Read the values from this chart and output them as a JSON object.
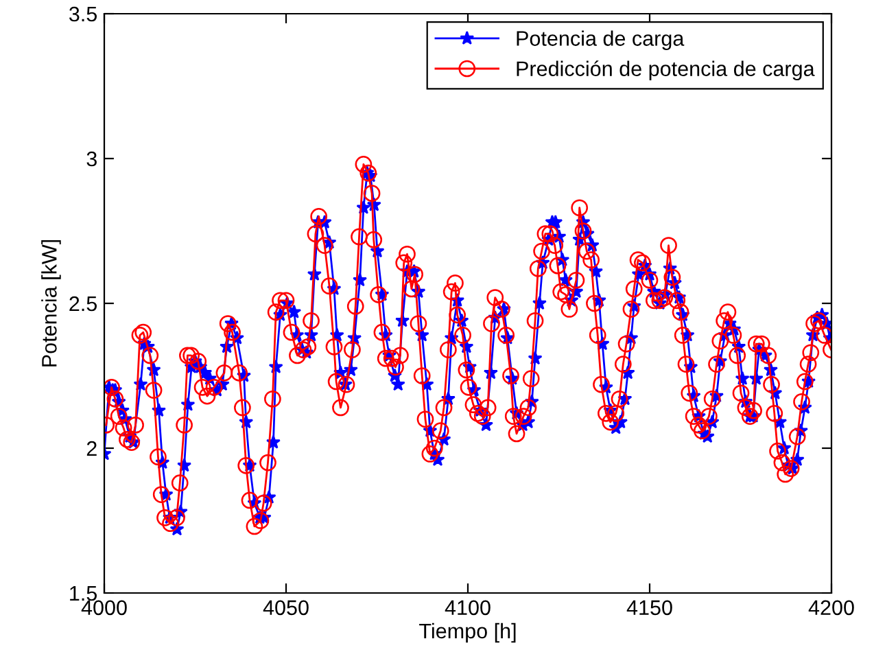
{
  "chart_data": {
    "type": "line",
    "xlabel": "Tiempo [h]",
    "ylabel": "Potencia [kW]",
    "xlim": [
      4000,
      4200
    ],
    "xticks": [
      4000,
      4050,
      4100,
      4150,
      4200
    ],
    "ylim": [
      1.5,
      3.5
    ],
    "yticks": [
      1.5,
      2,
      2.5,
      3,
      3.5
    ],
    "grid": false,
    "legend": "top right",
    "line_style": "solid",
    "series": [
      {
        "name": "Potencia de carga",
        "color": "#0000ff",
        "marker": "star",
        "x": [
          4000,
          4001.3,
          4002.3,
          4003,
          4004,
          4005,
          4005.7,
          4007,
          4008,
          4010,
          4011,
          4012,
          4013.6,
          4015,
          4016,
          4017,
          4018,
          4020,
          4021,
          4022,
          4023,
          4024,
          4025,
          4026.4,
          4027.7,
          4029,
          4031,
          4032.5,
          4033.7,
          4035,
          4036.5,
          4038.4,
          4039,
          4040,
          4041.3,
          4042.8,
          4044,
          4045.3,
          4046.5,
          4047.2,
          4048.4,
          4050.3,
          4052.2,
          4053,
          4054.4,
          4055.6,
          4056.9,
          4057.8,
          4058.8,
          4060.6,
          4061.9,
          4063.2,
          4064,
          4065,
          4066.3,
          4067.8,
          4068.8,
          4070.3,
          4071.3,
          4072.3,
          4073.2,
          4074.2,
          4075.1,
          4076.4,
          4077.4,
          4078.4,
          4079.9,
          4080.8,
          4082,
          4083.3,
          4085.2,
          4086.4,
          4087.4,
          4088.7,
          4089.6,
          4090.8,
          4091.7,
          4093.4,
          4094.6,
          4095.5,
          4097.1,
          4098.3,
          4099.6,
          4100.5,
          4101.7,
          4103.4,
          4105,
          4106.3,
          4107.5,
          4109.9,
          4110.9,
          4112.2,
          4113.4,
          4115.1,
          4116.6,
          4117.6,
          4118.5,
          4119.7,
          4120.6,
          4122.2,
          4123.2,
          4124.1,
          4125.1,
          4126,
          4126.9,
          4128.5,
          4129.8,
          4130.7,
          4131.7,
          4132.9,
          4134.2,
          4135.2,
          4136.1,
          4137,
          4138,
          4139.2,
          4140.7,
          4142,
          4143.2,
          4144,
          4144.9,
          4145.7,
          4147,
          4148.7,
          4150,
          4151.2,
          4152.8,
          4154.3,
          4155.6,
          4156.9,
          4158.1,
          4159.1,
          4160.4,
          4161.3,
          4162.1,
          4163.5,
          4165,
          4165.9,
          4167.2,
          4168.4,
          4169.4,
          4170.7,
          4172,
          4173.2,
          4174.5,
          4175.5,
          4176.4,
          4177.6,
          4178.5,
          4179.3,
          4180.1,
          4181.8,
          4183.3,
          4184.5,
          4185.8,
          4187,
          4188.1,
          4189.3,
          4190.6,
          4191.6,
          4192.7,
          4193.7,
          4194.9,
          4196.1,
          4197.4,
          4198.7,
          4199.6
        ],
        "values": [
          1.98,
          2.21,
          2.2,
          2.2,
          2.16,
          2.13,
          2.1,
          2.04,
          2.02,
          2.22,
          2.36,
          2.35,
          2.27,
          2.13,
          1.95,
          1.84,
          1.76,
          1.72,
          1.78,
          1.94,
          2.15,
          2.28,
          2.3,
          2.28,
          2.26,
          2.24,
          2.2,
          2.22,
          2.35,
          2.43,
          2.38,
          2.25,
          2.09,
          1.94,
          1.81,
          1.76,
          1.76,
          1.83,
          2.02,
          2.28,
          2.46,
          2.5,
          2.47,
          2.39,
          2.34,
          2.33,
          2.39,
          2.6,
          2.78,
          2.78,
          2.71,
          2.55,
          2.39,
          2.26,
          2.22,
          2.27,
          2.38,
          2.58,
          2.83,
          2.95,
          2.94,
          2.84,
          2.68,
          2.53,
          2.39,
          2.32,
          2.25,
          2.22,
          2.44,
          2.61,
          2.61,
          2.54,
          2.39,
          2.22,
          2.06,
          1.98,
          1.96,
          2.03,
          2.17,
          2.38,
          2.51,
          2.44,
          2.35,
          2.28,
          2.2,
          2.13,
          2.08,
          2.26,
          2.45,
          2.48,
          2.38,
          2.24,
          2.12,
          2.08,
          2.09,
          2.16,
          2.31,
          2.5,
          2.64,
          2.72,
          2.78,
          2.78,
          2.73,
          2.65,
          2.58,
          2.51,
          2.54,
          2.72,
          2.78,
          2.74,
          2.7,
          2.61,
          2.51,
          2.36,
          2.21,
          2.13,
          2.07,
          2.09,
          2.17,
          2.26,
          2.38,
          2.49,
          2.6,
          2.63,
          2.6,
          2.54,
          2.5,
          2.53,
          2.62,
          2.57,
          2.52,
          2.46,
          2.39,
          2.28,
          2.18,
          2.11,
          2.05,
          2.04,
          2.09,
          2.18,
          2.3,
          2.39,
          2.43,
          2.41,
          2.35,
          2.24,
          2.16,
          2.11,
          2.11,
          2.24,
          2.34,
          2.32,
          2.27,
          2.19,
          2.09,
          2.0,
          1.94,
          1.93,
          1.96,
          2.06,
          2.14,
          2.23,
          2.39,
          2.45,
          2.46,
          2.43,
          2.38
        ]
      },
      {
        "name": "Predicción de potencia de carga",
        "color": "#ff0000",
        "marker": "circle",
        "x": [
          4000.5,
          4002,
          4003,
          4004,
          4005.3,
          4006.3,
          4007.5,
          4008.6,
          4009.8,
          4010.7,
          4012.6,
          4013.6,
          4014.8,
          4015.7,
          4016.7,
          4018.2,
          4019.9,
          4020.8,
          4022,
          4022.9,
          4023.9,
          4025.8,
          4027,
          4028.3,
          4030.2,
          4033,
          4034,
          4035.2,
          4037.1,
          4038,
          4039,
          4040,
          4041.3,
          4043,
          4043.8,
          4045,
          4046.3,
          4047.2,
          4048.4,
          4050,
          4051.5,
          4053.1,
          4054.7,
          4056,
          4056.9,
          4058.1,
          4059,
          4060.6,
          4061.9,
          4063.2,
          4063.8,
          4065,
          4066.6,
          4068.2,
          4069.1,
          4070.1,
          4071.3,
          4072.6,
          4073.6,
          4074.1,
          4075.4,
          4076.4,
          4077.4,
          4079.1,
          4080.1,
          4081.4,
          4082.4,
          4083.3,
          4084.5,
          4085.4,
          4086.4,
          4087.4,
          4088.3,
          4089.6,
          4090.8,
          4092.5,
          4093.4,
          4094.6,
          4095.5,
          4096.5,
          4097.1,
          4098.6,
          4099.6,
          4100.2,
          4101.5,
          4102.7,
          4104,
          4105.5,
          4106.5,
          4107.5,
          4109.3,
          4110.5,
          4111.8,
          4112.5,
          4113.4,
          4115.3,
          4116.6,
          4117.4,
          4118.5,
          4119.3,
          4120.3,
          4121.3,
          4122.6,
          4123.9,
          4124.7,
          4125.6,
          4126.9,
          4127.9,
          4129.8,
          4130.7,
          4131.7,
          4132.7,
          4133.9,
          4134.8,
          4135.7,
          4136.7,
          4138,
          4139.2,
          4140.7,
          4141.7,
          4142.7,
          4143.6,
          4144.9,
          4145.7,
          4146.8,
          4148,
          4150,
          4151.2,
          4152.8,
          4154.1,
          4155.2,
          4156.2,
          4157.5,
          4158.5,
          4159.1,
          4160,
          4160.9,
          4162.1,
          4163.4,
          4164.4,
          4166.3,
          4167.2,
          4168.4,
          4169.4,
          4170.5,
          4171.5,
          4173,
          4174.1,
          4175.1,
          4176.4,
          4177.6,
          4178.6,
          4179.3,
          4180.8,
          4182.6,
          4183.5,
          4184.3,
          4185.2,
          4186.4,
          4187.3,
          4188.9,
          4190.6,
          4191.8,
          4192.7,
          4193.6,
          4194.3,
          4195.2,
          4196.5,
          4198.1,
          4199.9
        ],
        "values": [
          2.08,
          2.21,
          2.17,
          2.11,
          2.07,
          2.03,
          2.02,
          2.08,
          2.39,
          2.4,
          2.32,
          2.2,
          1.97,
          1.84,
          1.76,
          1.74,
          1.76,
          1.88,
          2.08,
          2.32,
          2.32,
          2.3,
          2.21,
          2.18,
          2.21,
          2.26,
          2.43,
          2.4,
          2.26,
          2.14,
          1.94,
          1.82,
          1.73,
          1.75,
          1.81,
          1.95,
          2.17,
          2.47,
          2.51,
          2.51,
          2.4,
          2.32,
          2.34,
          2.35,
          2.44,
          2.74,
          2.8,
          2.7,
          2.56,
          2.35,
          2.23,
          2.14,
          2.22,
          2.34,
          2.49,
          2.73,
          2.98,
          2.95,
          2.88,
          2.72,
          2.53,
          2.4,
          2.31,
          2.31,
          2.28,
          2.32,
          2.64,
          2.67,
          2.55,
          2.6,
          2.43,
          2.25,
          2.1,
          1.98,
          2.0,
          2.06,
          2.14,
          2.34,
          2.54,
          2.57,
          2.46,
          2.39,
          2.27,
          2.21,
          2.15,
          2.12,
          2.11,
          2.14,
          2.43,
          2.52,
          2.48,
          2.39,
          2.25,
          2.11,
          2.05,
          2.11,
          2.14,
          2.24,
          2.44,
          2.62,
          2.68,
          2.74,
          2.74,
          2.7,
          2.63,
          2.54,
          2.53,
          2.48,
          2.58,
          2.83,
          2.75,
          2.68,
          2.65,
          2.5,
          2.39,
          2.22,
          2.12,
          2.09,
          2.12,
          2.17,
          2.29,
          2.36,
          2.48,
          2.55,
          2.65,
          2.64,
          2.58,
          2.51,
          2.51,
          2.52,
          2.7,
          2.59,
          2.51,
          2.47,
          2.39,
          2.29,
          2.19,
          2.11,
          2.08,
          2.06,
          2.11,
          2.17,
          2.29,
          2.37,
          2.44,
          2.47,
          2.39,
          2.32,
          2.19,
          2.14,
          2.11,
          2.13,
          2.36,
          2.36,
          2.32,
          2.22,
          2.12,
          1.99,
          1.95,
          1.91,
          1.93,
          2.04,
          2.16,
          2.23,
          2.29,
          2.33,
          2.43,
          2.44,
          2.39,
          2.34
        ]
      }
    ]
  }
}
